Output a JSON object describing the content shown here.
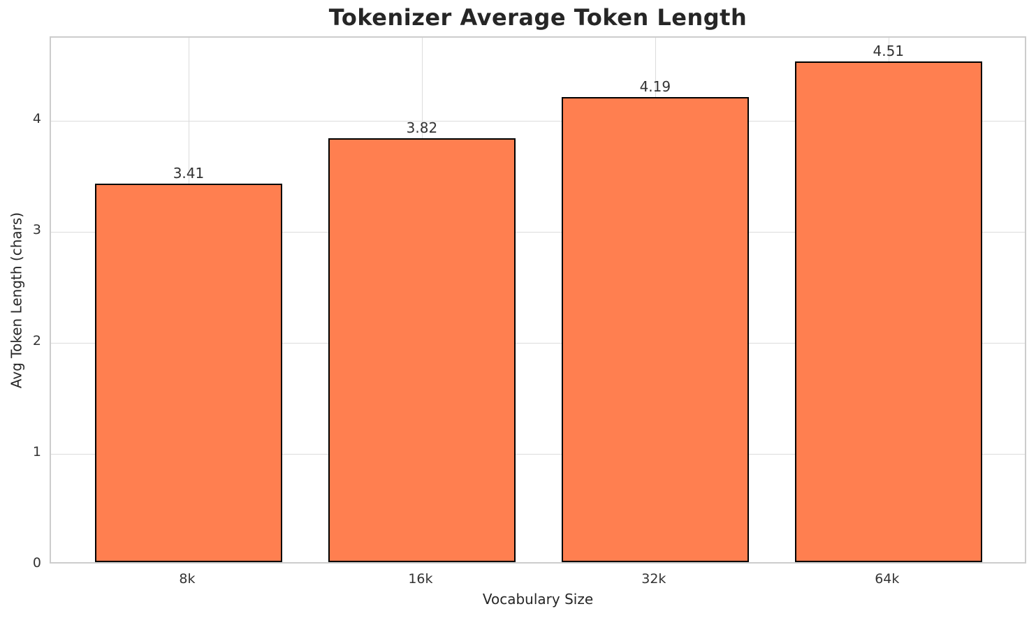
{
  "chart_data": {
    "type": "bar",
    "title": "Tokenizer Average Token Length",
    "xlabel": "Vocabulary Size",
    "ylabel": "Avg Token Length (chars)",
    "categories": [
      "8k",
      "16k",
      "32k",
      "64k"
    ],
    "values": [
      3.41,
      3.82,
      4.19,
      4.51
    ],
    "value_labels": [
      "3.41",
      "3.82",
      "4.19",
      "4.51"
    ],
    "yticks": [
      0,
      1,
      2,
      3,
      4
    ],
    "ylim": [
      0,
      4.75
    ],
    "grid": true,
    "legend": null,
    "colors": {
      "bar_fill": "#FF7F50",
      "bar_edge": "#000000",
      "grid_line": "#DCDCDC",
      "spine": "#CCCCCC",
      "text": "#262626",
      "background": "#FFFFFF"
    }
  }
}
